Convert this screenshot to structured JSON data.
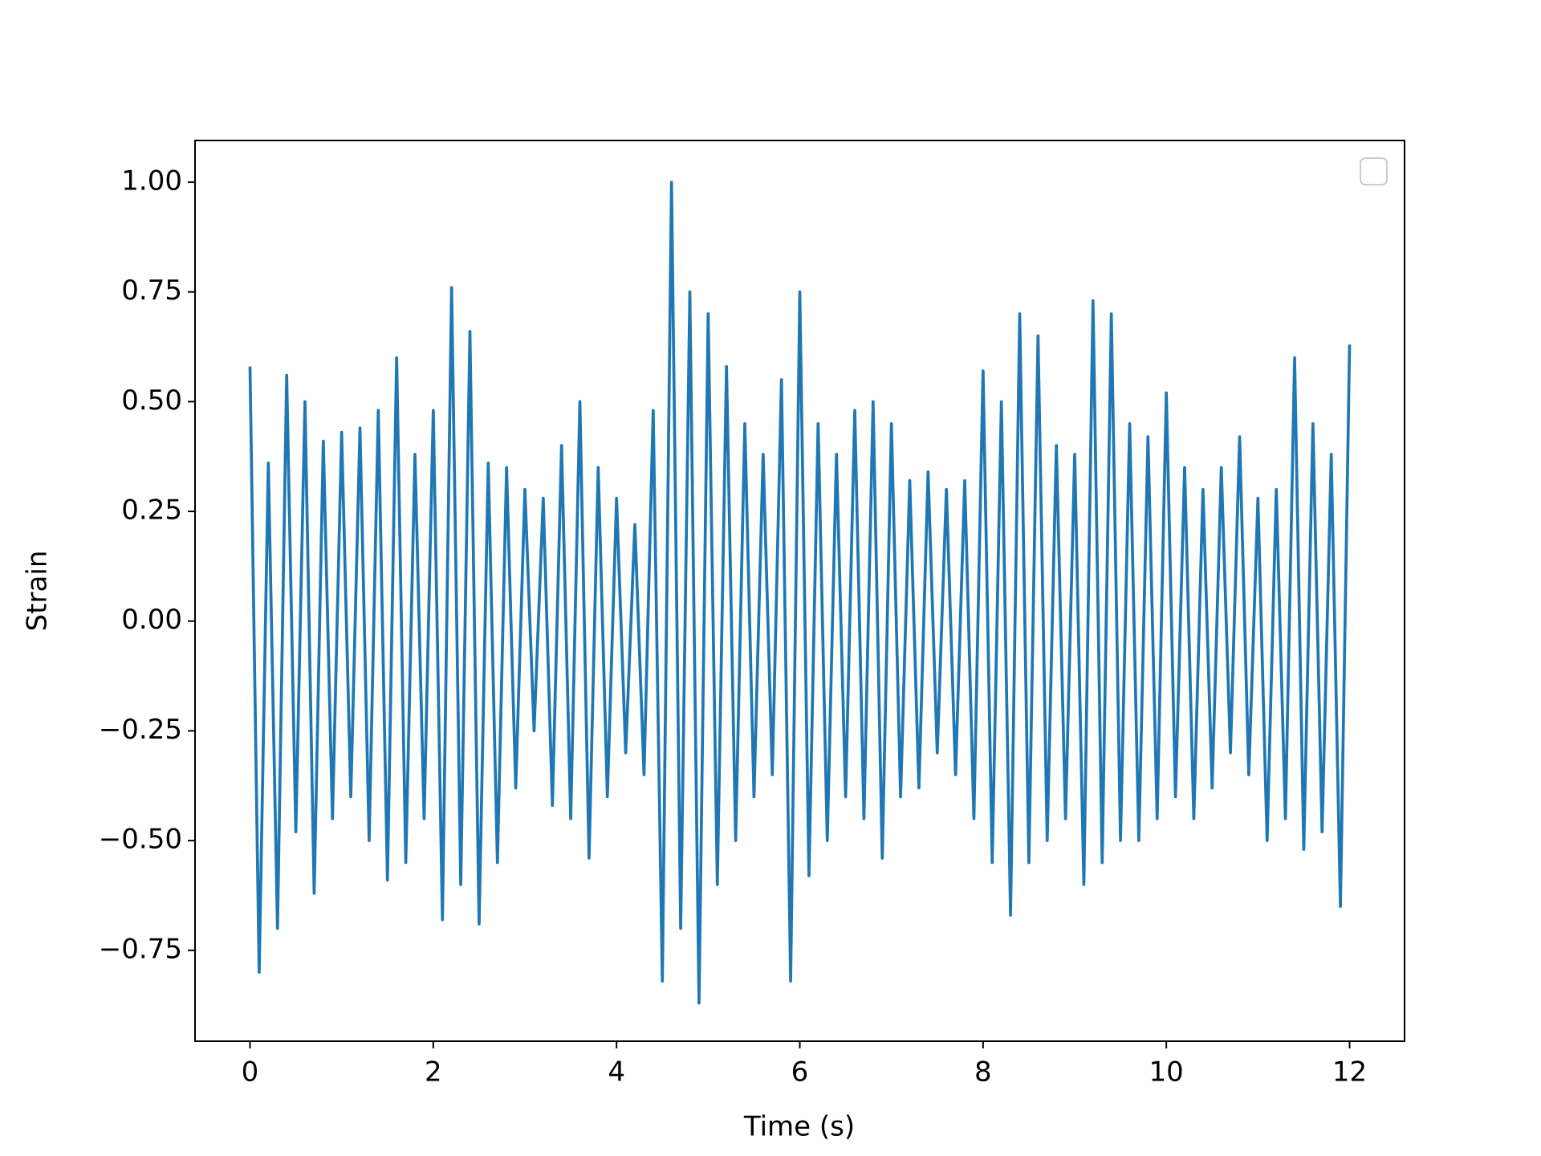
{
  "chart_data": {
    "type": "line",
    "xlabel": "Time (s)",
    "ylabel": "Strain",
    "x": [
      0,
      0.1,
      0.2,
      0.3,
      0.4,
      0.5,
      0.6,
      0.7,
      0.8,
      0.9,
      1,
      1.1,
      1.2,
      1.3,
      1.4,
      1.5,
      1.6,
      1.7,
      1.8,
      1.9,
      2,
      2.1,
      2.2,
      2.3,
      2.4,
      2.5,
      2.6,
      2.7,
      2.8,
      2.9,
      3,
      3.1,
      3.2,
      3.3,
      3.4,
      3.5,
      3.6,
      3.7,
      3.8,
      3.9,
      4,
      4.1,
      4.2,
      4.3,
      4.4,
      4.5,
      4.6,
      4.7,
      4.8,
      4.9,
      5,
      5.1,
      5.2,
      5.3,
      5.4,
      5.5,
      5.6,
      5.7,
      5.8,
      5.9,
      6,
      6.1,
      6.2,
      6.3,
      6.4,
      6.5,
      6.6,
      6.7,
      6.8,
      6.9,
      7,
      7.1,
      7.2,
      7.3,
      7.4,
      7.5,
      7.6,
      7.7,
      7.8,
      7.9,
      8,
      8.1,
      8.2,
      8.3,
      8.4,
      8.5,
      8.6,
      8.7,
      8.8,
      8.9,
      9,
      9.1,
      9.2,
      9.3,
      9.4,
      9.5,
      9.6,
      9.7,
      9.8,
      9.9,
      10,
      10.1,
      10.2,
      10.3,
      10.4,
      10.5,
      10.6,
      10.7,
      10.8,
      10.9,
      11,
      11.1,
      11.2,
      11.3,
      11.4,
      11.5,
      11.6,
      11.7,
      11.8,
      11.9,
      12
    ],
    "series": [
      {
        "color": "#1f77b4",
        "values": [
          0.58,
          -0.8,
          0.36,
          -0.7,
          0.56,
          -0.48,
          0.5,
          -0.62,
          0.41,
          -0.45,
          0.43,
          -0.4,
          0.44,
          -0.5,
          0.48,
          -0.59,
          0.6,
          -0.55,
          0.38,
          -0.45,
          0.48,
          -0.68,
          0.76,
          -0.6,
          0.66,
          -0.69,
          0.36,
          -0.55,
          0.35,
          -0.38,
          0.3,
          -0.25,
          0.28,
          -0.42,
          0.4,
          -0.45,
          0.5,
          -0.54,
          0.35,
          -0.4,
          0.28,
          -0.3,
          0.22,
          -0.35,
          0.48,
          -0.82,
          1.0,
          -0.7,
          0.75,
          -0.87,
          0.7,
          -0.6,
          0.58,
          -0.5,
          0.45,
          -0.4,
          0.38,
          -0.35,
          0.55,
          -0.82,
          0.75,
          -0.58,
          0.45,
          -0.5,
          0.38,
          -0.4,
          0.48,
          -0.45,
          0.5,
          -0.54,
          0.45,
          -0.4,
          0.32,
          -0.38,
          0.34,
          -0.3,
          0.3,
          -0.35,
          0.32,
          -0.45,
          0.57,
          -0.55,
          0.5,
          -0.67,
          0.7,
          -0.55,
          0.65,
          -0.5,
          0.4,
          -0.45,
          0.38,
          -0.6,
          0.73,
          -0.55,
          0.7,
          -0.5,
          0.45,
          -0.5,
          0.42,
          -0.45,
          0.52,
          -0.4,
          0.35,
          -0.45,
          0.3,
          -0.38,
          0.35,
          -0.3,
          0.42,
          -0.35,
          0.28,
          -0.5,
          0.3,
          -0.45,
          0.6,
          -0.52,
          0.45,
          -0.48,
          0.38,
          -0.65,
          0.63
        ]
      }
    ],
    "xlim": [
      -0.6,
      12.6
    ],
    "ylim": [
      -0.957,
      1.095
    ],
    "xticks": [
      0,
      2,
      4,
      6,
      8,
      10,
      12
    ],
    "yticks": [
      {
        "value": -0.75,
        "label": "−0.75"
      },
      {
        "value": -0.5,
        "label": "−0.50"
      },
      {
        "value": -0.25,
        "label": "−0.25"
      },
      {
        "value": 0,
        "label": "0.00"
      },
      {
        "value": 0.25,
        "label": "0.25"
      },
      {
        "value": 0.5,
        "label": "0.50"
      },
      {
        "value": 0.75,
        "label": "0.75"
      },
      {
        "value": 1,
        "label": "1.00"
      }
    ],
    "grid": false
  }
}
